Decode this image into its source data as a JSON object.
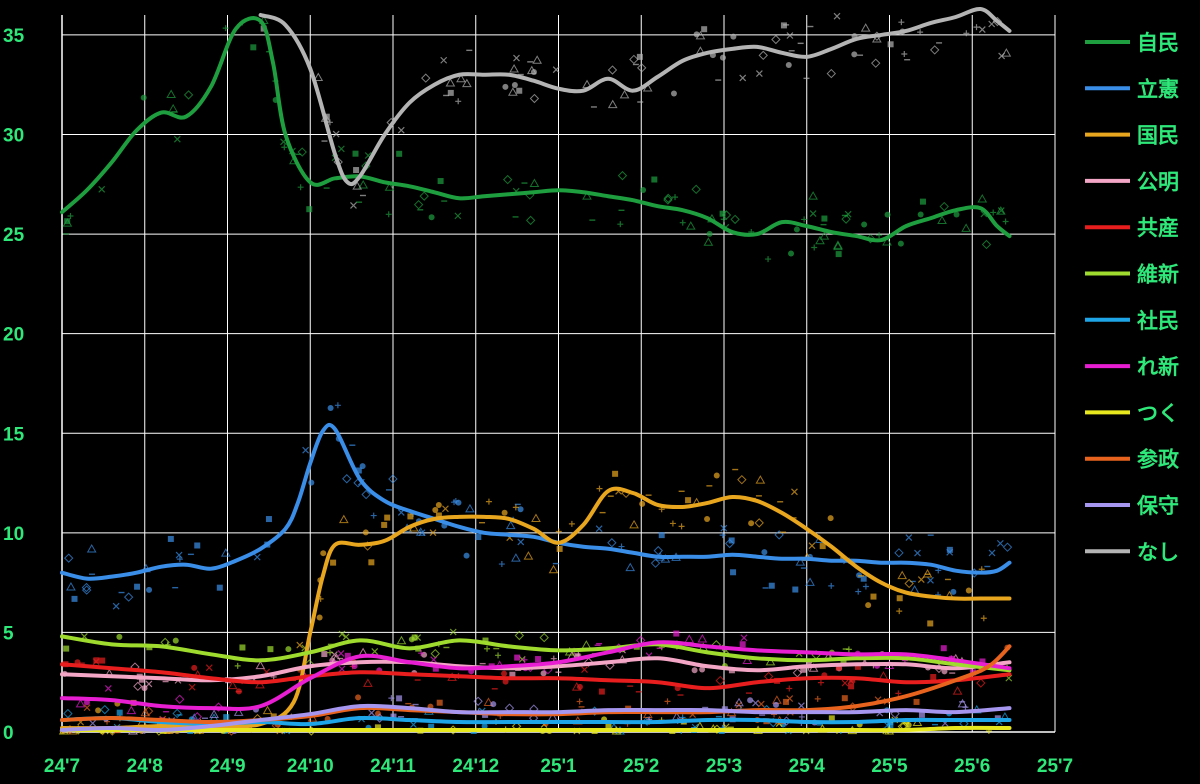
{
  "chart_data": {
    "type": "line",
    "title": "",
    "xlabel": "",
    "ylabel": "",
    "ylim": [
      0,
      36
    ],
    "xlim": [
      0,
      12
    ],
    "grid": true,
    "legend_position": "right",
    "yticks": [
      "0",
      "5",
      "10",
      "15",
      "20",
      "25",
      "30",
      "35"
    ],
    "ytick_values": [
      0,
      5,
      10,
      15,
      20,
      25,
      30,
      35
    ],
    "xticks": [
      "24'7",
      "24'8",
      "24'9",
      "24'10",
      "24'11",
      "24'12",
      "25'1",
      "25'2",
      "25'3",
      "25'4",
      "25'5",
      "25'6",
      "25'7"
    ],
    "text_color": "#2ee87a",
    "series": [
      {
        "name": "自民",
        "color": "#1e9e3e",
        "x": [
          0,
          0.3,
          0.6,
          0.9,
          1.2,
          1.5,
          1.8,
          2.1,
          2.4,
          2.55,
          2.7,
          3.0,
          3.3,
          3.6,
          3.9,
          4.2,
          4.5,
          4.8,
          5.1,
          5.4,
          5.7,
          6.0,
          6.3,
          6.6,
          6.9,
          7.2,
          7.5,
          7.8,
          8.1,
          8.4,
          8.7,
          9.0,
          9.3,
          9.6,
          9.9,
          10.2,
          10.5,
          10.8,
          11.1,
          11.3,
          11.45
        ],
        "y": [
          26.1,
          27.2,
          28.6,
          30.2,
          31.1,
          30.9,
          32.4,
          35.3,
          35.7,
          33.6,
          30.0,
          27.6,
          27.8,
          27.9,
          27.6,
          27.4,
          27.1,
          26.8,
          26.9,
          27.0,
          27.1,
          27.2,
          27.1,
          26.9,
          26.7,
          26.4,
          26.2,
          25.8,
          25.1,
          25.0,
          25.6,
          25.4,
          25.1,
          24.9,
          24.7,
          25.4,
          25.8,
          26.2,
          26.3,
          25.4,
          24.9
        ]
      },
      {
        "name": "立憲",
        "color": "#3a8ee8",
        "x": [
          0,
          0.3,
          0.6,
          0.9,
          1.2,
          1.5,
          1.8,
          2.1,
          2.4,
          2.7,
          2.85,
          3.0,
          3.15,
          3.3,
          3.6,
          3.9,
          4.2,
          4.5,
          4.8,
          5.1,
          5.4,
          5.7,
          6.0,
          6.3,
          6.6,
          6.9,
          7.2,
          7.5,
          7.8,
          8.1,
          8.4,
          8.7,
          9.0,
          9.3,
          9.6,
          9.9,
          10.2,
          10.5,
          10.8,
          11.1,
          11.3,
          11.45
        ],
        "y": [
          8.0,
          7.7,
          7.8,
          8.0,
          8.3,
          8.4,
          8.2,
          8.6,
          9.2,
          10.2,
          11.5,
          13.5,
          15.1,
          15.2,
          12.7,
          11.6,
          11.1,
          10.7,
          10.3,
          10.0,
          9.9,
          9.8,
          9.5,
          9.3,
          9.2,
          9.0,
          8.8,
          8.8,
          8.8,
          8.9,
          8.8,
          8.7,
          8.7,
          8.6,
          8.6,
          8.5,
          8.5,
          8.4,
          8.1,
          8.0,
          8.1,
          8.5
        ]
      },
      {
        "name": "国民",
        "color": "#e8a51e",
        "x": [
          0,
          0.6,
          1.2,
          1.8,
          2.4,
          2.8,
          3.0,
          3.15,
          3.3,
          3.6,
          3.9,
          4.2,
          4.5,
          4.8,
          5.1,
          5.4,
          5.7,
          6.0,
          6.3,
          6.6,
          6.9,
          7.2,
          7.5,
          7.8,
          8.1,
          8.4,
          8.7,
          9.0,
          9.3,
          9.6,
          9.9,
          10.2,
          10.5,
          10.8,
          11.1,
          11.3,
          11.45
        ],
        "y": [
          0.2,
          0.2,
          0.3,
          0.3,
          0.4,
          1.5,
          5.0,
          7.8,
          9.4,
          9.4,
          9.6,
          10.3,
          10.7,
          10.8,
          10.8,
          10.7,
          10.2,
          9.5,
          10.4,
          12.1,
          12.0,
          11.4,
          11.3,
          11.5,
          11.8,
          11.6,
          11.0,
          10.2,
          9.3,
          8.3,
          7.5,
          7.0,
          6.8,
          6.7,
          6.7,
          6.7,
          6.7
        ]
      },
      {
        "name": "公明",
        "color": "#f4a6c6",
        "x": [
          0,
          0.6,
          1.2,
          1.8,
          2.4,
          3.0,
          3.6,
          4.2,
          4.8,
          5.4,
          6.0,
          6.6,
          7.2,
          7.8,
          8.4,
          9.0,
          9.6,
          10.2,
          10.8,
          11.45
        ],
        "y": [
          2.9,
          2.8,
          2.7,
          2.6,
          2.8,
          3.3,
          3.5,
          3.5,
          3.3,
          3.2,
          3.3,
          3.5,
          3.7,
          3.3,
          3.1,
          3.3,
          3.4,
          3.4,
          3.2,
          3.5
        ]
      },
      {
        "name": "共産",
        "color": "#e81e1e",
        "x": [
          0,
          0.6,
          1.2,
          1.8,
          2.4,
          3.0,
          3.6,
          4.2,
          4.8,
          5.4,
          6.0,
          6.6,
          7.2,
          7.8,
          8.4,
          9.0,
          9.6,
          10.2,
          10.8,
          11.45
        ],
        "y": [
          3.4,
          3.2,
          3.0,
          2.7,
          2.5,
          2.8,
          3.0,
          2.9,
          2.8,
          2.7,
          2.7,
          2.6,
          2.5,
          2.2,
          2.5,
          2.7,
          2.7,
          2.5,
          2.6,
          2.9
        ]
      },
      {
        "name": "維新",
        "color": "#9edb2e",
        "x": [
          0,
          0.6,
          1.2,
          1.8,
          2.4,
          3.0,
          3.6,
          4.2,
          4.8,
          5.4,
          6.0,
          6.6,
          7.2,
          7.8,
          8.4,
          9.0,
          9.6,
          10.2,
          10.8,
          11.45
        ],
        "y": [
          4.8,
          4.4,
          4.3,
          3.9,
          3.6,
          4.0,
          4.6,
          4.2,
          4.6,
          4.3,
          4.1,
          4.2,
          4.4,
          4.0,
          3.7,
          3.6,
          3.7,
          3.7,
          3.4,
          3.1
        ]
      },
      {
        "name": "社民",
        "color": "#1ea5e8",
        "x": [
          0,
          0.6,
          1.2,
          1.8,
          2.4,
          3.0,
          3.6,
          4.2,
          4.8,
          5.4,
          6.0,
          6.6,
          7.2,
          7.8,
          8.4,
          9.0,
          9.6,
          10.2,
          10.8,
          11.45
        ],
        "y": [
          0.6,
          0.7,
          0.5,
          0.4,
          0.5,
          0.4,
          0.7,
          0.6,
          0.5,
          0.5,
          0.5,
          0.5,
          0.5,
          0.6,
          0.6,
          0.5,
          0.5,
          0.6,
          0.6,
          0.6
        ]
      },
      {
        "name": "れ新",
        "color": "#e81ed2",
        "x": [
          0,
          0.6,
          1.2,
          1.8,
          2.4,
          3.0,
          3.6,
          4.2,
          4.8,
          5.4,
          6.0,
          6.6,
          7.2,
          7.8,
          8.4,
          9.0,
          9.6,
          10.2,
          10.8,
          11.45
        ],
        "y": [
          1.7,
          1.6,
          1.3,
          1.2,
          1.3,
          2.7,
          3.8,
          3.5,
          3.2,
          3.3,
          3.5,
          4.0,
          4.5,
          4.3,
          4.1,
          4.0,
          3.9,
          3.9,
          3.6,
          3.2
        ]
      },
      {
        "name": "つく",
        "color": "#e8e81e",
        "x": [
          0,
          0.6,
          1.2,
          1.8,
          2.4,
          3.0,
          3.6,
          4.2,
          4.8,
          5.4,
          6.0,
          6.6,
          7.2,
          7.8,
          8.4,
          9.0,
          9.6,
          10.2,
          10.8,
          11.45
        ],
        "y": [
          0.1,
          0.1,
          0.1,
          0.1,
          0.1,
          0.1,
          0.1,
          0.1,
          0.1,
          0.1,
          0.1,
          0.1,
          0.1,
          0.1,
          0.1,
          0.1,
          0.1,
          0.1,
          0.2,
          0.2
        ]
      },
      {
        "name": "参政",
        "color": "#e8641e",
        "x": [
          0,
          0.6,
          1.2,
          1.8,
          2.4,
          3.0,
          3.6,
          4.2,
          4.8,
          5.4,
          6.0,
          6.6,
          7.2,
          7.8,
          8.4,
          9.0,
          9.6,
          10.2,
          10.8,
          11.2,
          11.45
        ],
        "y": [
          0.6,
          0.7,
          0.6,
          0.5,
          0.6,
          0.8,
          1.2,
          1.1,
          1.0,
          0.9,
          0.9,
          1.0,
          1.0,
          1.0,
          1.1,
          1.1,
          1.3,
          1.8,
          2.6,
          3.3,
          4.3
        ]
      },
      {
        "name": "保守",
        "color": "#a696f0",
        "x": [
          0,
          0.6,
          1.2,
          1.8,
          2.4,
          3.0,
          3.6,
          4.2,
          4.8,
          5.4,
          6.0,
          6.6,
          7.2,
          7.8,
          8.4,
          9.0,
          9.6,
          10.2,
          10.8,
          11.45
        ],
        "y": [
          0.1,
          0.2,
          0.1,
          0.3,
          0.6,
          0.9,
          1.3,
          1.2,
          1.0,
          1.0,
          1.0,
          1.1,
          1.1,
          1.1,
          1.0,
          1.0,
          1.0,
          1.1,
          1.0,
          1.2
        ]
      },
      {
        "name": "なし",
        "color": "#b4b4b4",
        "x": [
          2.4,
          2.7,
          3.0,
          3.3,
          3.45,
          3.6,
          3.9,
          4.2,
          4.5,
          4.8,
          5.1,
          5.4,
          5.7,
          6.0,
          6.3,
          6.6,
          6.9,
          7.2,
          7.5,
          7.8,
          8.1,
          8.4,
          8.7,
          9.0,
          9.3,
          9.6,
          9.9,
          10.2,
          10.5,
          10.8,
          11.1,
          11.3,
          11.45
        ],
        "y": [
          36.0,
          35.5,
          33.3,
          29.0,
          27.6,
          27.9,
          30.0,
          31.6,
          32.5,
          33.0,
          33.0,
          33.0,
          32.7,
          32.3,
          32.2,
          32.8,
          32.2,
          32.9,
          33.7,
          34.1,
          34.3,
          34.4,
          34.1,
          33.9,
          34.3,
          34.8,
          35.0,
          35.2,
          35.6,
          35.9,
          36.3,
          35.7,
          35.2
        ]
      }
    ]
  }
}
